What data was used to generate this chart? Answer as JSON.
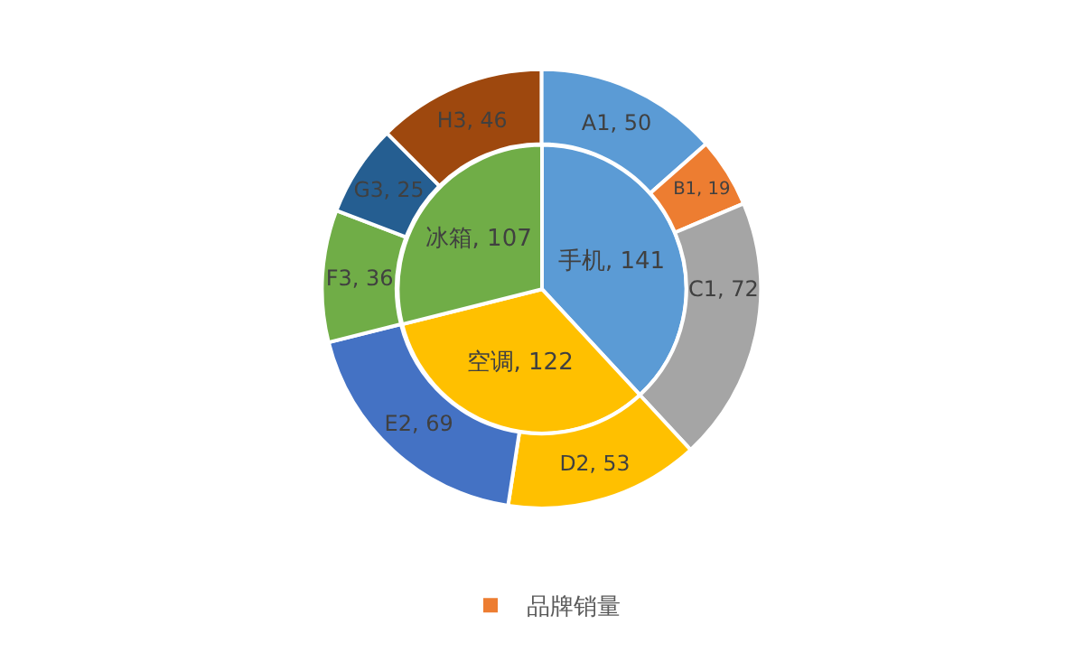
{
  "chart_data": {
    "type": "donut",
    "legend": "bottom",
    "categories": [
      "手机",
      "空调",
      "冰箱",
      "A1",
      "B1",
      "C1",
      "D2",
      "E2",
      "F3",
      "G3",
      "H3"
    ],
    "series": [
      {
        "type": "pie",
        "colors": [
          "#5b9bd5",
          "#ffc000",
          "#70ad47",
          null,
          null,
          null,
          null,
          null,
          null,
          null,
          null
        ],
        "values": [
          141,
          122,
          107,
          null,
          null,
          null,
          null,
          null,
          null,
          null,
          null
        ],
        "value_labels": [
          ", 141",
          ", 122",
          ", 107",
          null,
          null,
          null,
          null,
          null,
          null,
          null,
          null
        ]
      },
      {
        "name": "品牌销量",
        "color": "#ed7d31",
        "colors": [
          null,
          null,
          null,
          "#5b9bd5",
          "#ed7d31",
          "#a5a5a5",
          "#ffc000",
          "#4472c4",
          "#70ad47",
          "#255e91",
          "#9e480e"
        ],
        "values": [
          null,
          null,
          null,
          50,
          19,
          72,
          53,
          69,
          36,
          25,
          46
        ],
        "value_labels": [
          null,
          null,
          null,
          ", 50",
          ", 19",
          ", 72",
          ", 53",
          ", 69",
          ", 36",
          ", 25",
          ", 46"
        ]
      }
    ]
  }
}
